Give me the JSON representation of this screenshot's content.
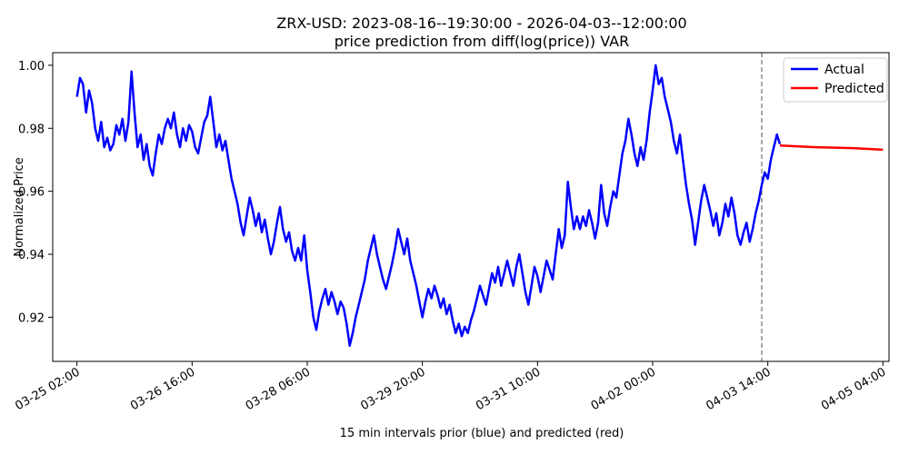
{
  "chart_data": {
    "type": "line",
    "title": "ZRX-USD: 2023-08-16--19:30:00 - 2026-04-03--12:00:00",
    "subtitle": "price prediction from diff(log(price)) VAR",
    "xlabel": "15 min intervals prior (blue) and predicted (red)",
    "ylabel": "Normalized Price",
    "xlim": [
      "2026-03-24 18:00",
      "2026-04-05 06:00"
    ],
    "ylim": [
      0.906,
      1.004
    ],
    "x_ticks": [
      "03-25 02:00",
      "03-26 16:00",
      "03-28 06:00",
      "03-29 20:00",
      "03-31 10:00",
      "04-02 00:00",
      "04-03 14:00",
      "04-05 04:00"
    ],
    "y_ticks": [
      "0.92",
      "0.94",
      "0.96",
      "0.98",
      "1.00"
    ],
    "forecast_start": "2026-04-03 12:00",
    "grid": false,
    "legend": "top-right",
    "series": [
      {
        "name": "Actual",
        "color": "#0000ff",
        "points": [
          [
            "2026-03-25 02:00",
            0.99
          ],
          [
            "2026-03-25 03:00",
            0.996
          ],
          [
            "2026-03-25 04:00",
            0.994
          ],
          [
            "2026-03-25 05:00",
            0.985
          ],
          [
            "2026-03-25 06:00",
            0.992
          ],
          [
            "2026-03-25 07:00",
            0.988
          ],
          [
            "2026-03-25 08:00",
            0.98
          ],
          [
            "2026-03-25 09:00",
            0.976
          ],
          [
            "2026-03-25 10:00",
            0.982
          ],
          [
            "2026-03-25 11:00",
            0.974
          ],
          [
            "2026-03-25 12:00",
            0.977
          ],
          [
            "2026-03-25 13:00",
            0.973
          ],
          [
            "2026-03-25 14:00",
            0.975
          ],
          [
            "2026-03-25 15:00",
            0.981
          ],
          [
            "2026-03-25 16:00",
            0.978
          ],
          [
            "2026-03-25 17:00",
            0.983
          ],
          [
            "2026-03-25 18:00",
            0.976
          ],
          [
            "2026-03-25 19:00",
            0.982
          ],
          [
            "2026-03-25 20:00",
            0.998
          ],
          [
            "2026-03-25 21:00",
            0.985
          ],
          [
            "2026-03-25 22:00",
            0.974
          ],
          [
            "2026-03-25 23:00",
            0.978
          ],
          [
            "2026-03-26 00:00",
            0.97
          ],
          [
            "2026-03-26 01:00",
            0.975
          ],
          [
            "2026-03-26 02:00",
            0.968
          ],
          [
            "2026-03-26 03:00",
            0.965
          ],
          [
            "2026-03-26 04:00",
            0.972
          ],
          [
            "2026-03-26 05:00",
            0.978
          ],
          [
            "2026-03-26 06:00",
            0.975
          ],
          [
            "2026-03-26 07:00",
            0.98
          ],
          [
            "2026-03-26 08:00",
            0.983
          ],
          [
            "2026-03-26 09:00",
            0.98
          ],
          [
            "2026-03-26 10:00",
            0.985
          ],
          [
            "2026-03-26 11:00",
            0.978
          ],
          [
            "2026-03-26 12:00",
            0.974
          ],
          [
            "2026-03-26 13:00",
            0.98
          ],
          [
            "2026-03-26 14:00",
            0.976
          ],
          [
            "2026-03-26 15:00",
            0.981
          ],
          [
            "2026-03-26 16:00",
            0.979
          ],
          [
            "2026-03-26 17:00",
            0.974
          ],
          [
            "2026-03-26 18:00",
            0.972
          ],
          [
            "2026-03-26 19:00",
            0.977
          ],
          [
            "2026-03-26 20:00",
            0.982
          ],
          [
            "2026-03-26 21:00",
            0.984
          ],
          [
            "2026-03-26 22:00",
            0.99
          ],
          [
            "2026-03-26 23:00",
            0.982
          ],
          [
            "2026-03-27 00:00",
            0.974
          ],
          [
            "2026-03-27 01:00",
            0.978
          ],
          [
            "2026-03-27 02:00",
            0.973
          ],
          [
            "2026-03-27 03:00",
            0.976
          ],
          [
            "2026-03-27 04:00",
            0.97
          ],
          [
            "2026-03-27 05:00",
            0.964
          ],
          [
            "2026-03-27 06:00",
            0.96
          ],
          [
            "2026-03-27 07:00",
            0.956
          ],
          [
            "2026-03-27 08:00",
            0.95
          ],
          [
            "2026-03-27 09:00",
            0.946
          ],
          [
            "2026-03-27 10:00",
            0.952
          ],
          [
            "2026-03-27 11:00",
            0.958
          ],
          [
            "2026-03-27 12:00",
            0.954
          ],
          [
            "2026-03-27 13:00",
            0.949
          ],
          [
            "2026-03-27 14:00",
            0.953
          ],
          [
            "2026-03-27 15:00",
            0.947
          ],
          [
            "2026-03-27 16:00",
            0.951
          ],
          [
            "2026-03-27 17:00",
            0.945
          ],
          [
            "2026-03-27 18:00",
            0.94
          ],
          [
            "2026-03-27 19:00",
            0.944
          ],
          [
            "2026-03-27 20:00",
            0.95
          ],
          [
            "2026-03-27 21:00",
            0.955
          ],
          [
            "2026-03-27 22:00",
            0.948
          ],
          [
            "2026-03-27 23:00",
            0.944
          ],
          [
            "2026-03-28 00:00",
            0.947
          ],
          [
            "2026-03-28 01:00",
            0.941
          ],
          [
            "2026-03-28 02:00",
            0.938
          ],
          [
            "2026-03-28 03:00",
            0.942
          ],
          [
            "2026-03-28 04:00",
            0.938
          ],
          [
            "2026-03-28 05:00",
            0.946
          ],
          [
            "2026-03-28 06:00",
            0.935
          ],
          [
            "2026-03-28 07:00",
            0.928
          ],
          [
            "2026-03-28 08:00",
            0.92
          ],
          [
            "2026-03-28 09:00",
            0.916
          ],
          [
            "2026-03-28 10:00",
            0.922
          ],
          [
            "2026-03-28 11:00",
            0.926
          ],
          [
            "2026-03-28 12:00",
            0.929
          ],
          [
            "2026-03-28 13:00",
            0.924
          ],
          [
            "2026-03-28 14:00",
            0.928
          ],
          [
            "2026-03-28 15:00",
            0.925
          ],
          [
            "2026-03-28 16:00",
            0.921
          ],
          [
            "2026-03-28 17:00",
            0.925
          ],
          [
            "2026-03-28 18:00",
            0.923
          ],
          [
            "2026-03-28 19:00",
            0.918
          ],
          [
            "2026-03-28 20:00",
            0.911
          ],
          [
            "2026-03-28 21:00",
            0.915
          ],
          [
            "2026-03-28 22:00",
            0.92
          ],
          [
            "2026-03-28 23:00",
            0.924
          ],
          [
            "2026-03-29 00:00",
            0.928
          ],
          [
            "2026-03-29 01:00",
            0.932
          ],
          [
            "2026-03-29 02:00",
            0.938
          ],
          [
            "2026-03-29 03:00",
            0.942
          ],
          [
            "2026-03-29 04:00",
            0.946
          ],
          [
            "2026-03-29 05:00",
            0.94
          ],
          [
            "2026-03-29 06:00",
            0.936
          ],
          [
            "2026-03-29 07:00",
            0.932
          ],
          [
            "2026-03-29 08:00",
            0.929
          ],
          [
            "2026-03-29 09:00",
            0.933
          ],
          [
            "2026-03-29 10:00",
            0.937
          ],
          [
            "2026-03-29 11:00",
            0.942
          ],
          [
            "2026-03-29 12:00",
            0.948
          ],
          [
            "2026-03-29 13:00",
            0.944
          ],
          [
            "2026-03-29 14:00",
            0.94
          ],
          [
            "2026-03-29 15:00",
            0.945
          ],
          [
            "2026-03-29 16:00",
            0.938
          ],
          [
            "2026-03-29 17:00",
            0.934
          ],
          [
            "2026-03-29 18:00",
            0.93
          ],
          [
            "2026-03-29 19:00",
            0.925
          ],
          [
            "2026-03-29 20:00",
            0.92
          ],
          [
            "2026-03-29 21:00",
            0.925
          ],
          [
            "2026-03-29 22:00",
            0.929
          ],
          [
            "2026-03-29 23:00",
            0.926
          ],
          [
            "2026-03-30 00:00",
            0.93
          ],
          [
            "2026-03-30 01:00",
            0.927
          ],
          [
            "2026-03-30 02:00",
            0.923
          ],
          [
            "2026-03-30 03:00",
            0.926
          ],
          [
            "2026-03-30 04:00",
            0.921
          ],
          [
            "2026-03-30 05:00",
            0.924
          ],
          [
            "2026-03-30 06:00",
            0.919
          ],
          [
            "2026-03-30 07:00",
            0.915
          ],
          [
            "2026-03-30 08:00",
            0.918
          ],
          [
            "2026-03-30 09:00",
            0.914
          ],
          [
            "2026-03-30 10:00",
            0.917
          ],
          [
            "2026-03-30 11:00",
            0.915
          ],
          [
            "2026-03-30 12:00",
            0.919
          ],
          [
            "2026-03-30 13:00",
            0.922
          ],
          [
            "2026-03-30 14:00",
            0.926
          ],
          [
            "2026-03-30 15:00",
            0.93
          ],
          [
            "2026-03-30 16:00",
            0.927
          ],
          [
            "2026-03-30 17:00",
            0.924
          ],
          [
            "2026-03-30 18:00",
            0.929
          ],
          [
            "2026-03-30 19:00",
            0.934
          ],
          [
            "2026-03-30 20:00",
            0.931
          ],
          [
            "2026-03-30 21:00",
            0.936
          ],
          [
            "2026-03-30 22:00",
            0.93
          ],
          [
            "2026-03-30 23:00",
            0.934
          ],
          [
            "2026-03-31 00:00",
            0.938
          ],
          [
            "2026-03-31 01:00",
            0.934
          ],
          [
            "2026-03-31 02:00",
            0.93
          ],
          [
            "2026-03-31 03:00",
            0.936
          ],
          [
            "2026-03-31 04:00",
            0.94
          ],
          [
            "2026-03-31 05:00",
            0.934
          ],
          [
            "2026-03-31 06:00",
            0.928
          ],
          [
            "2026-03-31 07:00",
            0.924
          ],
          [
            "2026-03-31 08:00",
            0.93
          ],
          [
            "2026-03-31 09:00",
            0.936
          ],
          [
            "2026-03-31 10:00",
            0.933
          ],
          [
            "2026-03-31 11:00",
            0.928
          ],
          [
            "2026-03-31 12:00",
            0.933
          ],
          [
            "2026-03-31 13:00",
            0.938
          ],
          [
            "2026-03-31 14:00",
            0.935
          ],
          [
            "2026-03-31 15:00",
            0.932
          ],
          [
            "2026-03-31 16:00",
            0.94
          ],
          [
            "2026-03-31 17:00",
            0.948
          ],
          [
            "2026-03-31 18:00",
            0.942
          ],
          [
            "2026-03-31 19:00",
            0.946
          ],
          [
            "2026-03-31 20:00",
            0.963
          ],
          [
            "2026-03-31 21:00",
            0.955
          ],
          [
            "2026-03-31 22:00",
            0.948
          ],
          [
            "2026-03-31 23:00",
            0.952
          ],
          [
            "2026-04-01 00:00",
            0.948
          ],
          [
            "2026-04-01 01:00",
            0.952
          ],
          [
            "2026-04-01 02:00",
            0.949
          ],
          [
            "2026-04-01 03:00",
            0.954
          ],
          [
            "2026-04-01 04:00",
            0.95
          ],
          [
            "2026-04-01 05:00",
            0.945
          ],
          [
            "2026-04-01 06:00",
            0.95
          ],
          [
            "2026-04-01 07:00",
            0.962
          ],
          [
            "2026-04-01 08:00",
            0.953
          ],
          [
            "2026-04-01 09:00",
            0.949
          ],
          [
            "2026-04-01 10:00",
            0.955
          ],
          [
            "2026-04-01 11:00",
            0.96
          ],
          [
            "2026-04-01 12:00",
            0.958
          ],
          [
            "2026-04-01 13:00",
            0.965
          ],
          [
            "2026-04-01 14:00",
            0.972
          ],
          [
            "2026-04-01 15:00",
            0.976
          ],
          [
            "2026-04-01 16:00",
            0.983
          ],
          [
            "2026-04-01 17:00",
            0.978
          ],
          [
            "2026-04-01 18:00",
            0.972
          ],
          [
            "2026-04-01 19:00",
            0.968
          ],
          [
            "2026-04-01 20:00",
            0.974
          ],
          [
            "2026-04-01 21:00",
            0.97
          ],
          [
            "2026-04-01 22:00",
            0.976
          ],
          [
            "2026-04-01 23:00",
            0.985
          ],
          [
            "2026-04-02 00:00",
            0.992
          ],
          [
            "2026-04-02 01:00",
            1.0
          ],
          [
            "2026-04-02 02:00",
            0.994
          ],
          [
            "2026-04-02 03:00",
            0.996
          ],
          [
            "2026-04-02 04:00",
            0.99
          ],
          [
            "2026-04-02 05:00",
            0.986
          ],
          [
            "2026-04-02 06:00",
            0.982
          ],
          [
            "2026-04-02 07:00",
            0.976
          ],
          [
            "2026-04-02 08:00",
            0.972
          ],
          [
            "2026-04-02 09:00",
            0.978
          ],
          [
            "2026-04-02 10:00",
            0.97
          ],
          [
            "2026-04-02 11:00",
            0.962
          ],
          [
            "2026-04-02 12:00",
            0.956
          ],
          [
            "2026-04-02 13:00",
            0.951
          ],
          [
            "2026-04-02 14:00",
            0.943
          ],
          [
            "2026-04-02 15:00",
            0.95
          ],
          [
            "2026-04-02 16:00",
            0.957
          ],
          [
            "2026-04-02 17:00",
            0.962
          ],
          [
            "2026-04-02 18:00",
            0.958
          ],
          [
            "2026-04-02 19:00",
            0.954
          ],
          [
            "2026-04-02 20:00",
            0.949
          ],
          [
            "2026-04-02 21:00",
            0.953
          ],
          [
            "2026-04-02 22:00",
            0.946
          ],
          [
            "2026-04-02 23:00",
            0.95
          ],
          [
            "2026-04-03 00:00",
            0.956
          ],
          [
            "2026-04-03 01:00",
            0.952
          ],
          [
            "2026-04-03 02:00",
            0.958
          ],
          [
            "2026-04-03 03:00",
            0.953
          ],
          [
            "2026-04-03 04:00",
            0.946
          ],
          [
            "2026-04-03 05:00",
            0.943
          ],
          [
            "2026-04-03 06:00",
            0.947
          ],
          [
            "2026-04-03 07:00",
            0.95
          ],
          [
            "2026-04-03 08:00",
            0.944
          ],
          [
            "2026-04-03 09:00",
            0.948
          ],
          [
            "2026-04-03 10:00",
            0.953
          ],
          [
            "2026-04-03 11:00",
            0.957
          ],
          [
            "2026-04-03 12:00",
            0.962
          ],
          [
            "2026-04-03 13:00",
            0.966
          ],
          [
            "2026-04-03 14:00",
            0.964
          ],
          [
            "2026-04-03 15:00",
            0.97
          ],
          [
            "2026-04-03 16:00",
            0.974
          ],
          [
            "2026-04-03 17:00",
            0.978
          ],
          [
            "2026-04-03 18:00",
            0.975
          ]
        ]
      },
      {
        "name": "Predicted",
        "color": "#ff0000",
        "points": [
          [
            "2026-04-03 18:00",
            0.9745
          ],
          [
            "2026-04-04 06:00",
            0.974
          ],
          [
            "2026-04-04 18:00",
            0.9737
          ],
          [
            "2026-04-05 04:00",
            0.9732
          ]
        ]
      }
    ]
  }
}
